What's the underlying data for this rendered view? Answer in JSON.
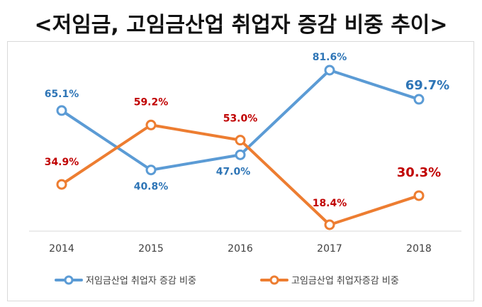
{
  "title": "<저임금, 고임금산업 취업자 증감 비중 추이>",
  "chart_data": {
    "type": "line",
    "categories": [
      "2014",
      "2015",
      "2016",
      "2017",
      "2018"
    ],
    "ylim": [
      0,
      100
    ],
    "grid": false,
    "legend_position": "bottom",
    "series": [
      {
        "name": "저임금산업 취업자 증감 비중",
        "color": "#5B9BD5",
        "label_color": "#2E75B6",
        "values": [
          65.1,
          40.8,
          47.0,
          81.6,
          69.7
        ],
        "labels": [
          "65.1%",
          "40.8%",
          "47.0%",
          "81.6%",
          "69.7%"
        ]
      },
      {
        "name": "고임금산업 취업자증감 비중",
        "color": "#ED7D31",
        "label_color": "#C00000",
        "values": [
          34.9,
          59.2,
          53.0,
          18.4,
          30.3
        ],
        "labels": [
          "34.9%",
          "59.2%",
          "53.0%",
          "18.4%",
          "30.3%"
        ]
      }
    ]
  }
}
